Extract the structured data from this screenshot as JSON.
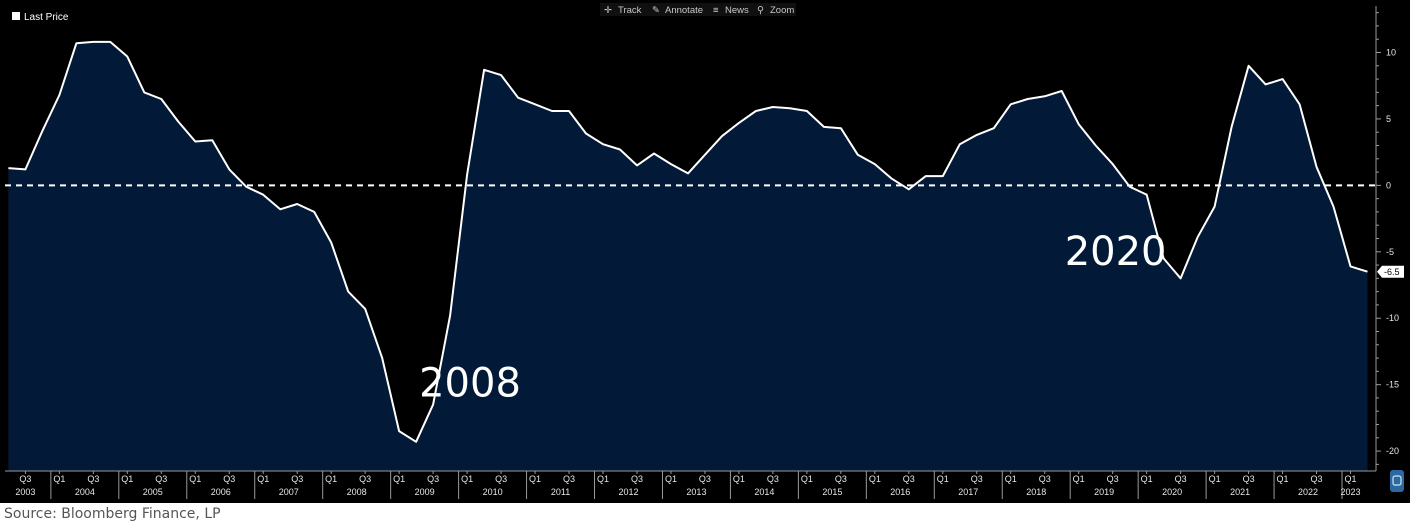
{
  "toolbar": {
    "items": [
      {
        "label": "Track",
        "icon": "crosshair-icon"
      },
      {
        "label": "Annotate",
        "icon": "pencil-icon"
      },
      {
        "label": "News",
        "icon": "news-icon"
      },
      {
        "label": "Zoom",
        "icon": "magnifier-icon"
      }
    ]
  },
  "legend": {
    "label": "Last Price",
    "swatch_color": "#ffffff"
  },
  "source": "Source: Bloomberg Finance, LP",
  "chart_data": {
    "type": "area",
    "series": [
      {
        "name": "Last Price",
        "color": "#ffffff",
        "fill": "#021a38",
        "x": [
          "2003-Q2",
          "2003-Q3",
          "2003-Q4",
          "2004-Q1",
          "2004-Q2",
          "2004-Q3",
          "2004-Q4",
          "2005-Q1",
          "2005-Q2",
          "2005-Q3",
          "2005-Q4",
          "2006-Q1",
          "2006-Q2",
          "2006-Q3",
          "2006-Q4",
          "2007-Q1",
          "2007-Q2",
          "2007-Q3",
          "2007-Q4",
          "2008-Q1",
          "2008-Q2",
          "2008-Q3",
          "2008-Q4",
          "2009-Q1",
          "2009-Q2",
          "2009-Q3",
          "2009-Q4",
          "2010-Q1",
          "2010-Q2",
          "2010-Q3",
          "2010-Q4",
          "2011-Q1",
          "2011-Q2",
          "2011-Q3",
          "2011-Q4",
          "2012-Q1",
          "2012-Q2",
          "2012-Q3",
          "2012-Q4",
          "2013-Q1",
          "2013-Q2",
          "2013-Q3",
          "2013-Q4",
          "2014-Q1",
          "2014-Q2",
          "2014-Q3",
          "2014-Q4",
          "2015-Q1",
          "2015-Q2",
          "2015-Q3",
          "2015-Q4",
          "2016-Q1",
          "2016-Q2",
          "2016-Q3",
          "2016-Q4",
          "2017-Q1",
          "2017-Q2",
          "2017-Q3",
          "2017-Q4",
          "2018-Q1",
          "2018-Q2",
          "2018-Q3",
          "2018-Q4",
          "2019-Q1",
          "2019-Q2",
          "2019-Q3",
          "2019-Q4",
          "2020-Q1",
          "2020-Q2",
          "2020-Q3",
          "2020-Q4",
          "2021-Q1",
          "2021-Q2",
          "2021-Q3",
          "2021-Q4",
          "2022-Q1",
          "2022-Q2",
          "2022-Q3",
          "2022-Q4",
          "2023-Q1",
          "2023-Q2"
        ],
        "values": [
          1.3,
          1.2,
          4.1,
          6.8,
          10.7,
          10.8,
          10.8,
          9.7,
          7.0,
          6.5,
          4.8,
          3.3,
          3.4,
          1.2,
          -0.1,
          -0.7,
          -1.8,
          -1.4,
          -2.0,
          -4.3,
          -8.0,
          -9.3,
          -13.0,
          -18.5,
          -19.3,
          -16.5,
          -9.8,
          0.8,
          8.7,
          8.3,
          6.6,
          6.1,
          5.6,
          5.6,
          3.9,
          3.1,
          2.7,
          1.5,
          2.4,
          1.6,
          0.9,
          2.3,
          3.7,
          4.7,
          5.6,
          5.9,
          5.8,
          5.6,
          4.4,
          4.3,
          2.3,
          1.6,
          0.5,
          -0.3,
          0.7,
          0.7,
          3.1,
          3.8,
          4.3,
          6.1,
          6.5,
          6.7,
          7.1,
          4.6,
          3.0,
          1.6,
          -0.1,
          -0.7,
          -5.5,
          -7.0,
          -3.9,
          -1.6,
          4.4,
          9.0,
          7.6,
          8.0,
          6.1,
          1.4,
          -1.6,
          -6.1,
          -6.5
        ]
      }
    ],
    "last_value_label": "-6.5",
    "ylim": [
      -21.5,
      13.5
    ],
    "yticks": [
      10,
      5,
      0,
      -5,
      -10,
      -15,
      -20
    ],
    "reference_line": {
      "y": 0,
      "style": "dashed",
      "color": "#ffffff"
    },
    "annotations": [
      {
        "text": "2008",
        "x": "2009-Q3",
        "y": -15.9
      },
      {
        "text": "2020",
        "x": "2019-Q1",
        "y": -6.0
      }
    ],
    "x_axis": {
      "start_year": 2003,
      "end_year": 2023,
      "quarter_labels": [
        "Q1",
        "Q3"
      ],
      "years": [
        "2003",
        "2004",
        "2005",
        "2006",
        "2007",
        "2008",
        "2009",
        "2010",
        "2011",
        "2012",
        "2013",
        "2014",
        "2015",
        "2016",
        "2017",
        "2018",
        "2019",
        "2020",
        "2021",
        "2022",
        "2023"
      ]
    },
    "legend_position": "top-left",
    "grid": false
  }
}
